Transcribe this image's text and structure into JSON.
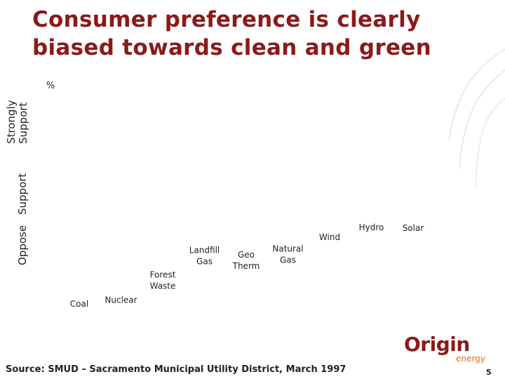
{
  "title_line1": "Consumer preference is clearly",
  "title_line2": "biased towards clean and green",
  "unit_label": "%",
  "y_category_labels": [
    "Strongly Support",
    "Support",
    "Oppose"
  ],
  "source": "Source:  SMUD – Sacramento Municipal Utility District, March 1997",
  "page_number": "5",
  "logo": {
    "word": "Origin",
    "sub": "energy"
  },
  "chart_data": {
    "type": "scatter",
    "title": "Consumer preference is clearly biased towards clean and green",
    "ylabel": "%",
    "y_categories": [
      "Oppose",
      "Support",
      "Strongly Support"
    ],
    "points": [
      {
        "label": [
          "Coal"
        ],
        "order": 1,
        "level": 0.0
      },
      {
        "label": [
          "Nuclear"
        ],
        "order": 2,
        "level": 0.05
      },
      {
        "label": [
          "Forest",
          "Waste"
        ],
        "order": 3,
        "level": 0.38
      },
      {
        "label": [
          "Landfill",
          "Gas"
        ],
        "order": 4,
        "level": 0.7
      },
      {
        "label": [
          "Geo",
          "Therm"
        ],
        "order": 5,
        "level": 0.64
      },
      {
        "label": [
          "Natural",
          "Gas"
        ],
        "order": 6,
        "level": 0.72
      },
      {
        "label": [
          "Wind"
        ],
        "order": 7,
        "level": 0.87
      },
      {
        "label": [
          "Hydro"
        ],
        "order": 8,
        "level": 1.0
      },
      {
        "label": [
          "Solar"
        ],
        "order": 9,
        "level": 0.99
      }
    ]
  },
  "colors": {
    "title": "#8b1a1a",
    "accent": "#e36d16",
    "text": "#222222"
  }
}
